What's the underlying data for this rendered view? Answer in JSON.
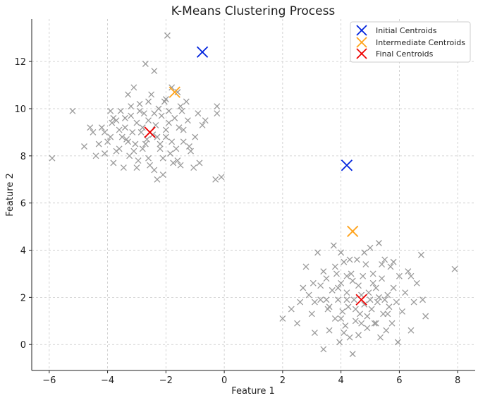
{
  "chart_data": {
    "type": "scatter",
    "title": "K-Means Clustering Process",
    "xlabel": "Feature 1",
    "ylabel": "Feature 2",
    "xlim": [
      -6.6,
      8.6
    ],
    "ylim": [
      -1.1,
      13.8
    ],
    "xticks": [
      -6,
      -4,
      -2,
      0,
      2,
      4,
      6,
      8
    ],
    "yticks": [
      0,
      2,
      4,
      6,
      8,
      10,
      12
    ],
    "grid": true,
    "legend_position": "top-right",
    "colors": {
      "points": "#9a9a9a",
      "initial": "#0022dd",
      "intermediate": "#ffa31a",
      "final": "#ee0000"
    },
    "series": [
      {
        "name": "",
        "marker": "x",
        "points": [
          [
            -5.9,
            7.9
          ],
          [
            -5.2,
            9.9
          ],
          [
            -4.8,
            8.4
          ],
          [
            -4.6,
            9.2
          ],
          [
            -4.5,
            9.0
          ],
          [
            -4.3,
            8.5
          ],
          [
            -4.2,
            9.2
          ],
          [
            -4.1,
            8.1
          ],
          [
            -4.0,
            8.6
          ],
          [
            -3.9,
            9.9
          ],
          [
            -3.85,
            9.4
          ],
          [
            -3.8,
            7.7
          ],
          [
            -3.7,
            9.5
          ],
          [
            -3.6,
            8.3
          ],
          [
            -3.55,
            9.9
          ],
          [
            -3.5,
            8.8
          ],
          [
            -3.45,
            7.5
          ],
          [
            -3.4,
            9.2
          ],
          [
            -3.35,
            8.7
          ],
          [
            -3.3,
            10.6
          ],
          [
            -3.25,
            8.0
          ],
          [
            -3.2,
            9.7
          ],
          [
            -3.15,
            9.0
          ],
          [
            -3.1,
            10.9
          ],
          [
            -3.05,
            8.5
          ],
          [
            -3.0,
            9.4
          ],
          [
            -2.95,
            7.8
          ],
          [
            -2.9,
            10.2
          ],
          [
            -2.85,
            9.0
          ],
          [
            -2.8,
            8.3
          ],
          [
            -2.75,
            9.8
          ],
          [
            -2.7,
            11.9
          ],
          [
            -2.65,
            8.7
          ],
          [
            -2.6,
            9.5
          ],
          [
            -2.55,
            7.6
          ],
          [
            -2.5,
            10.6
          ],
          [
            -2.45,
            8.9
          ],
          [
            -2.4,
            11.6
          ],
          [
            -2.35,
            9.3
          ],
          [
            -2.3,
            7.0
          ],
          [
            -2.25,
            10.0
          ],
          [
            -2.2,
            8.5
          ],
          [
            -2.15,
            9.7
          ],
          [
            -2.1,
            7.2
          ],
          [
            -2.05,
            10.3
          ],
          [
            -2.0,
            8.8
          ],
          [
            -1.95,
            13.1
          ],
          [
            -1.9,
            9.4
          ],
          [
            -1.85,
            8.1
          ],
          [
            -1.8,
            10.9
          ],
          [
            -1.75,
            7.7
          ],
          [
            -1.7,
            9.6
          ],
          [
            -1.65,
            8.3
          ],
          [
            -1.6,
            10.7
          ],
          [
            -1.55,
            9.2
          ],
          [
            -1.5,
            7.6
          ],
          [
            -1.45,
            9.9
          ],
          [
            -1.4,
            8.6
          ],
          [
            -1.3,
            10.3
          ],
          [
            -1.25,
            9.5
          ],
          [
            -1.15,
            8.2
          ],
          [
            -1.05,
            7.5
          ],
          [
            -1.0,
            8.8
          ],
          [
            -0.9,
            9.8
          ],
          [
            -0.85,
            7.7
          ],
          [
            -0.75,
            9.3
          ],
          [
            -0.65,
            9.5
          ],
          [
            -0.3,
            7.0
          ],
          [
            -0.25,
            9.8
          ],
          [
            -0.1,
            7.1
          ],
          [
            -0.25,
            10.1
          ],
          [
            -3.6,
            9.1
          ],
          [
            -3.3,
            8.6
          ],
          [
            -2.8,
            9.2
          ],
          [
            -2.3,
            8.8
          ],
          [
            -2.0,
            9.1
          ],
          [
            -1.8,
            8.6
          ],
          [
            -3.7,
            8.2
          ],
          [
            -4.4,
            8.0
          ],
          [
            -3.0,
            7.5
          ],
          [
            -2.6,
            7.9
          ],
          [
            -2.1,
            7.9
          ],
          [
            -1.6,
            7.8
          ],
          [
            -3.4,
            9.6
          ],
          [
            -2.9,
            9.9
          ],
          [
            -2.4,
            9.8
          ],
          [
            -1.9,
            9.9
          ],
          [
            -3.1,
            8.2
          ],
          [
            -2.7,
            8.5
          ],
          [
            -2.2,
            8.3
          ],
          [
            -1.4,
            9.1
          ],
          [
            -4.1,
            9.0
          ],
          [
            -3.8,
            9.6
          ],
          [
            -3.2,
            10.1
          ],
          [
            -2.6,
            10.3
          ],
          [
            -2.0,
            10.4
          ],
          [
            -1.5,
            10.1
          ],
          [
            -3.9,
            8.8
          ],
          [
            -1.2,
            8.4
          ],
          [
            -2.4,
            7.4
          ],
          [
            2.0,
            1.1
          ],
          [
            2.3,
            1.5
          ],
          [
            2.5,
            0.9
          ],
          [
            2.6,
            1.8
          ],
          [
            2.8,
            3.3
          ],
          [
            2.9,
            2.1
          ],
          [
            3.0,
            1.3
          ],
          [
            3.05,
            2.6
          ],
          [
            3.1,
            0.5
          ],
          [
            3.2,
            3.9
          ],
          [
            3.3,
            1.9
          ],
          [
            3.4,
            -0.2
          ],
          [
            3.5,
            2.8
          ],
          [
            3.55,
            1.5
          ],
          [
            3.6,
            0.6
          ],
          [
            3.7,
            2.3
          ],
          [
            3.75,
            4.2
          ],
          [
            3.8,
            1.1
          ],
          [
            3.85,
            3.0
          ],
          [
            3.9,
            1.9
          ],
          [
            3.95,
            0.1
          ],
          [
            4.0,
            2.6
          ],
          [
            4.05,
            1.4
          ],
          [
            4.1,
            3.5
          ],
          [
            4.15,
            0.8
          ],
          [
            4.2,
            2.2
          ],
          [
            4.25,
            1.6
          ],
          [
            4.3,
            0.3
          ],
          [
            4.35,
            3.0
          ],
          [
            4.4,
            -0.4
          ],
          [
            4.45,
            1.9
          ],
          [
            4.5,
            1.0
          ],
          [
            4.55,
            3.6
          ],
          [
            4.6,
            2.5
          ],
          [
            4.65,
            1.3
          ],
          [
            4.7,
            0.9
          ],
          [
            4.75,
            2.9
          ],
          [
            4.8,
            1.7
          ],
          [
            4.85,
            3.4
          ],
          [
            4.9,
            0.7
          ],
          [
            4.95,
            2.2
          ],
          [
            5.0,
            4.1
          ],
          [
            5.05,
            1.5
          ],
          [
            5.1,
            3.0
          ],
          [
            5.15,
            0.9
          ],
          [
            5.2,
            2.4
          ],
          [
            5.25,
            1.8
          ],
          [
            5.3,
            4.3
          ],
          [
            5.35,
            0.3
          ],
          [
            5.4,
            2.8
          ],
          [
            5.45,
            1.3
          ],
          [
            5.5,
            3.6
          ],
          [
            5.55,
            0.6
          ],
          [
            5.6,
            2.1
          ],
          [
            5.65,
            1.6
          ],
          [
            5.7,
            3.3
          ],
          [
            5.75,
            0.9
          ],
          [
            5.8,
            2.4
          ],
          [
            5.9,
            1.8
          ],
          [
            5.95,
            0.1
          ],
          [
            6.0,
            2.9
          ],
          [
            6.1,
            1.4
          ],
          [
            6.2,
            2.2
          ],
          [
            6.3,
            3.1
          ],
          [
            6.4,
            0.6
          ],
          [
            6.5,
            1.8
          ],
          [
            6.6,
            2.6
          ],
          [
            6.75,
            3.8
          ],
          [
            6.8,
            1.9
          ],
          [
            6.9,
            1.2
          ],
          [
            7.9,
            3.2
          ],
          [
            3.3,
            2.5
          ],
          [
            3.5,
            1.9
          ],
          [
            3.9,
            2.4
          ],
          [
            4.2,
            1.9
          ],
          [
            4.4,
            2.7
          ],
          [
            4.7,
            2.1
          ],
          [
            5.0,
            1.9
          ],
          [
            5.3,
            2.0
          ],
          [
            5.6,
            1.3
          ],
          [
            3.6,
            1.6
          ],
          [
            4.0,
            1.1
          ],
          [
            4.5,
            1.5
          ],
          [
            4.9,
            1.2
          ],
          [
            5.2,
            0.9
          ],
          [
            5.5,
            1.9
          ],
          [
            3.8,
            3.3
          ],
          [
            4.3,
            3.6
          ],
          [
            4.8,
            3.9
          ],
          [
            5.4,
            3.4
          ],
          [
            2.7,
            2.4
          ],
          [
            3.1,
            1.8
          ],
          [
            4.1,
            0.5
          ],
          [
            4.6,
            0.4
          ],
          [
            5.8,
            3.5
          ],
          [
            6.4,
            2.9
          ],
          [
            5.1,
            2.6
          ],
          [
            4.2,
            2.9
          ],
          [
            3.4,
            3.1
          ],
          [
            4.0,
            3.9
          ]
        ]
      },
      {
        "name": "Initial Centroids",
        "marker": "x",
        "points": [
          [
            -0.75,
            12.4
          ],
          [
            4.2,
            7.6
          ]
        ]
      },
      {
        "name": "Intermediate Centroids",
        "marker": "x",
        "points": [
          [
            -1.7,
            10.7
          ],
          [
            4.4,
            4.8
          ]
        ]
      },
      {
        "name": "Final Centroids",
        "marker": "x",
        "points": [
          [
            -2.55,
            9.0
          ],
          [
            4.7,
            1.9
          ]
        ]
      }
    ]
  }
}
